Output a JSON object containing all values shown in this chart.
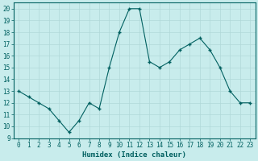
{
  "x": [
    0,
    1,
    2,
    3,
    4,
    5,
    6,
    7,
    8,
    9,
    10,
    11,
    12,
    13,
    14,
    15,
    16,
    17,
    18,
    19,
    20,
    21,
    22,
    23
  ],
  "y": [
    13,
    12.5,
    12,
    11.5,
    10.5,
    9.5,
    10.5,
    12,
    11.5,
    15,
    18,
    20,
    20,
    15.5,
    15,
    15.5,
    16.5,
    17,
    17.5,
    16.5,
    15,
    13,
    12,
    12
  ],
  "line_color": "#006060",
  "marker_color": "#006060",
  "bg_color": "#c8ecec",
  "grid_color": "#b0d8d8",
  "xlabel": "Humidex (Indice chaleur)",
  "xlim": [
    -0.5,
    23.5
  ],
  "ylim": [
    9,
    20.5
  ],
  "yticks": [
    9,
    10,
    11,
    12,
    13,
    14,
    15,
    16,
    17,
    18,
    19,
    20
  ],
  "xticks": [
    0,
    1,
    2,
    3,
    4,
    5,
    6,
    7,
    8,
    9,
    10,
    11,
    12,
    13,
    14,
    15,
    16,
    17,
    18,
    19,
    20,
    21,
    22,
    23
  ],
  "font_color": "#006060",
  "tick_fontsize": 5.5,
  "label_fontsize": 6.5
}
